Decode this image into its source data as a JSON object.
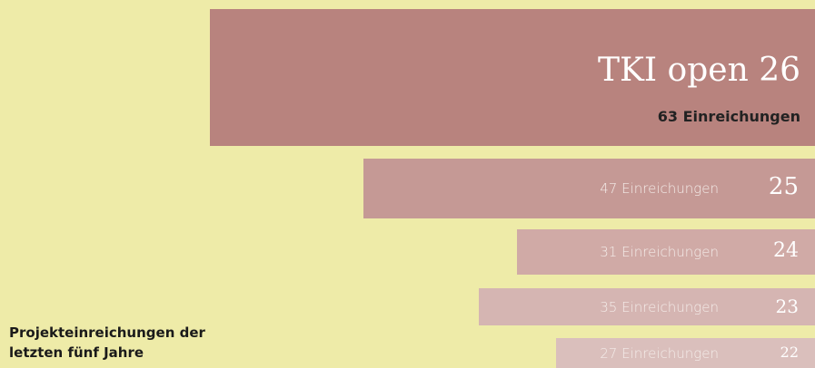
{
  "chart_data": {
    "type": "bar",
    "orientation": "horizontal",
    "subtitle": "Projekteinreichungen der letzten fünf Jahre",
    "categories": [
      "TKI open 26",
      "25",
      "24",
      "23",
      "22"
    ],
    "values": [
      63,
      47,
      31,
      35,
      27
    ],
    "value_labels": [
      "63 Einreichungen",
      "47 Einreichungen",
      "31 Einreichungen",
      "35 Einreichungen",
      "27 Einreichungen"
    ],
    "colors": [
      "#b8837e",
      "#c59995",
      "#d0aaa6",
      "#d5b5b2",
      "#dabfbc"
    ],
    "background": "#eeeba8"
  }
}
